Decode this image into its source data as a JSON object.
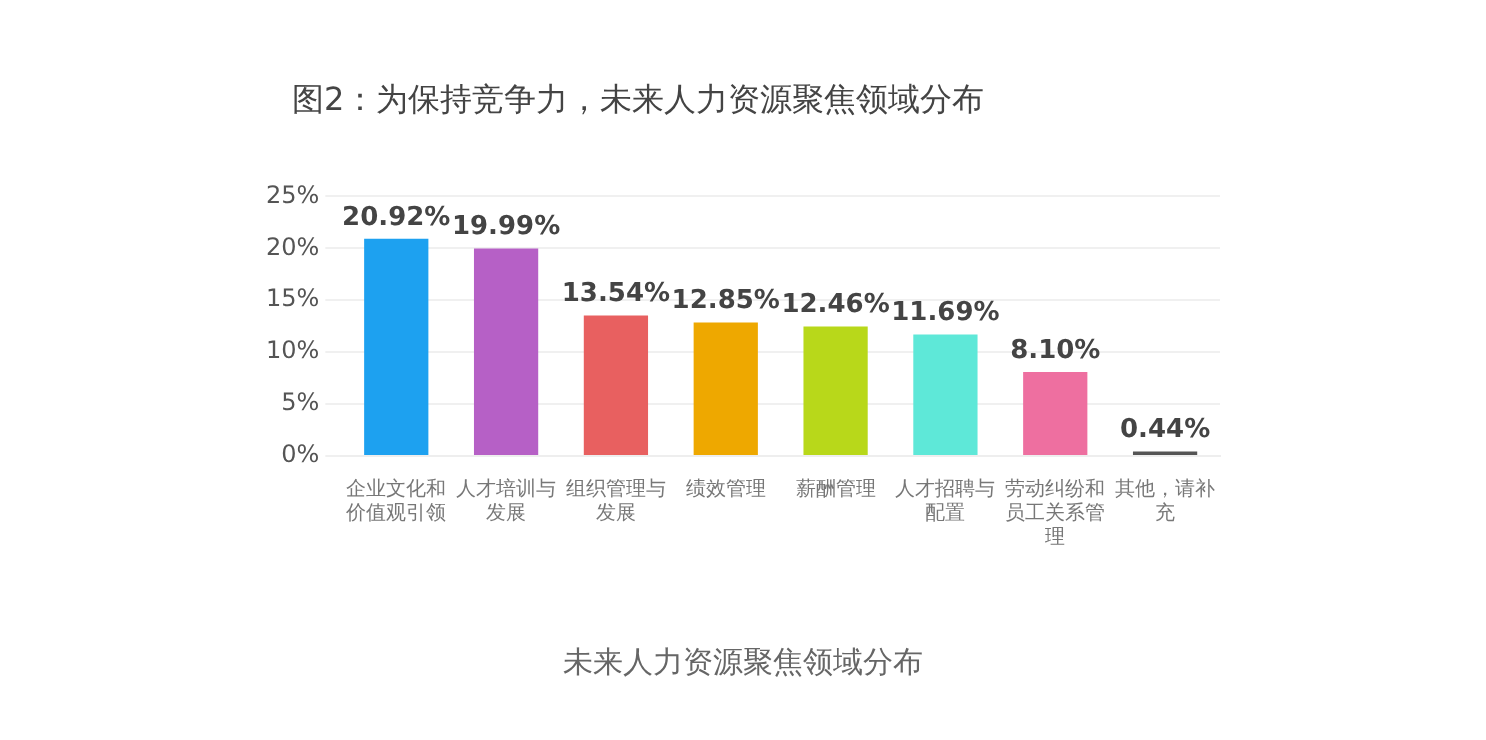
{
  "chart_data": {
    "type": "bar",
    "title": "图2：为保持竞争力，未来人力资源聚焦领域分布",
    "categories": [
      "企业文化和价值观引领",
      "人才培训与发展",
      "组织管理与发展",
      "绩效管理",
      "薪酬管理",
      "人才招聘与配置",
      "劳动纠纷和员工关系管理",
      "其他，请补充"
    ],
    "values": [
      20.92,
      19.99,
      13.54,
      12.85,
      12.46,
      11.69,
      8.1,
      0.44
    ],
    "colors": [
      "#1da1f0",
      "#b660c6",
      "#e86060",
      "#eea800",
      "#b8d81a",
      "#5ee8d8",
      "#ee6fa0",
      "#555555"
    ],
    "value_labels": [
      "20.92%",
      "19.99%",
      "13.54%",
      "12.85%",
      "12.46%",
      "11.69%",
      "8.10%",
      "0.44%"
    ],
    "ylim": [
      0,
      25
    ],
    "yticks": [
      {
        "value": 0,
        "label": "0%"
      },
      {
        "value": 5,
        "label": "5%"
      },
      {
        "value": 10,
        "label": "10%"
      },
      {
        "value": 15,
        "label": "15%"
      },
      {
        "value": 20,
        "label": "20%"
      },
      {
        "value": 25,
        "label": "25%"
      }
    ],
    "grid": "y",
    "legend": false,
    "annotations": [
      "未来人力资源聚焦领域分布"
    ]
  }
}
